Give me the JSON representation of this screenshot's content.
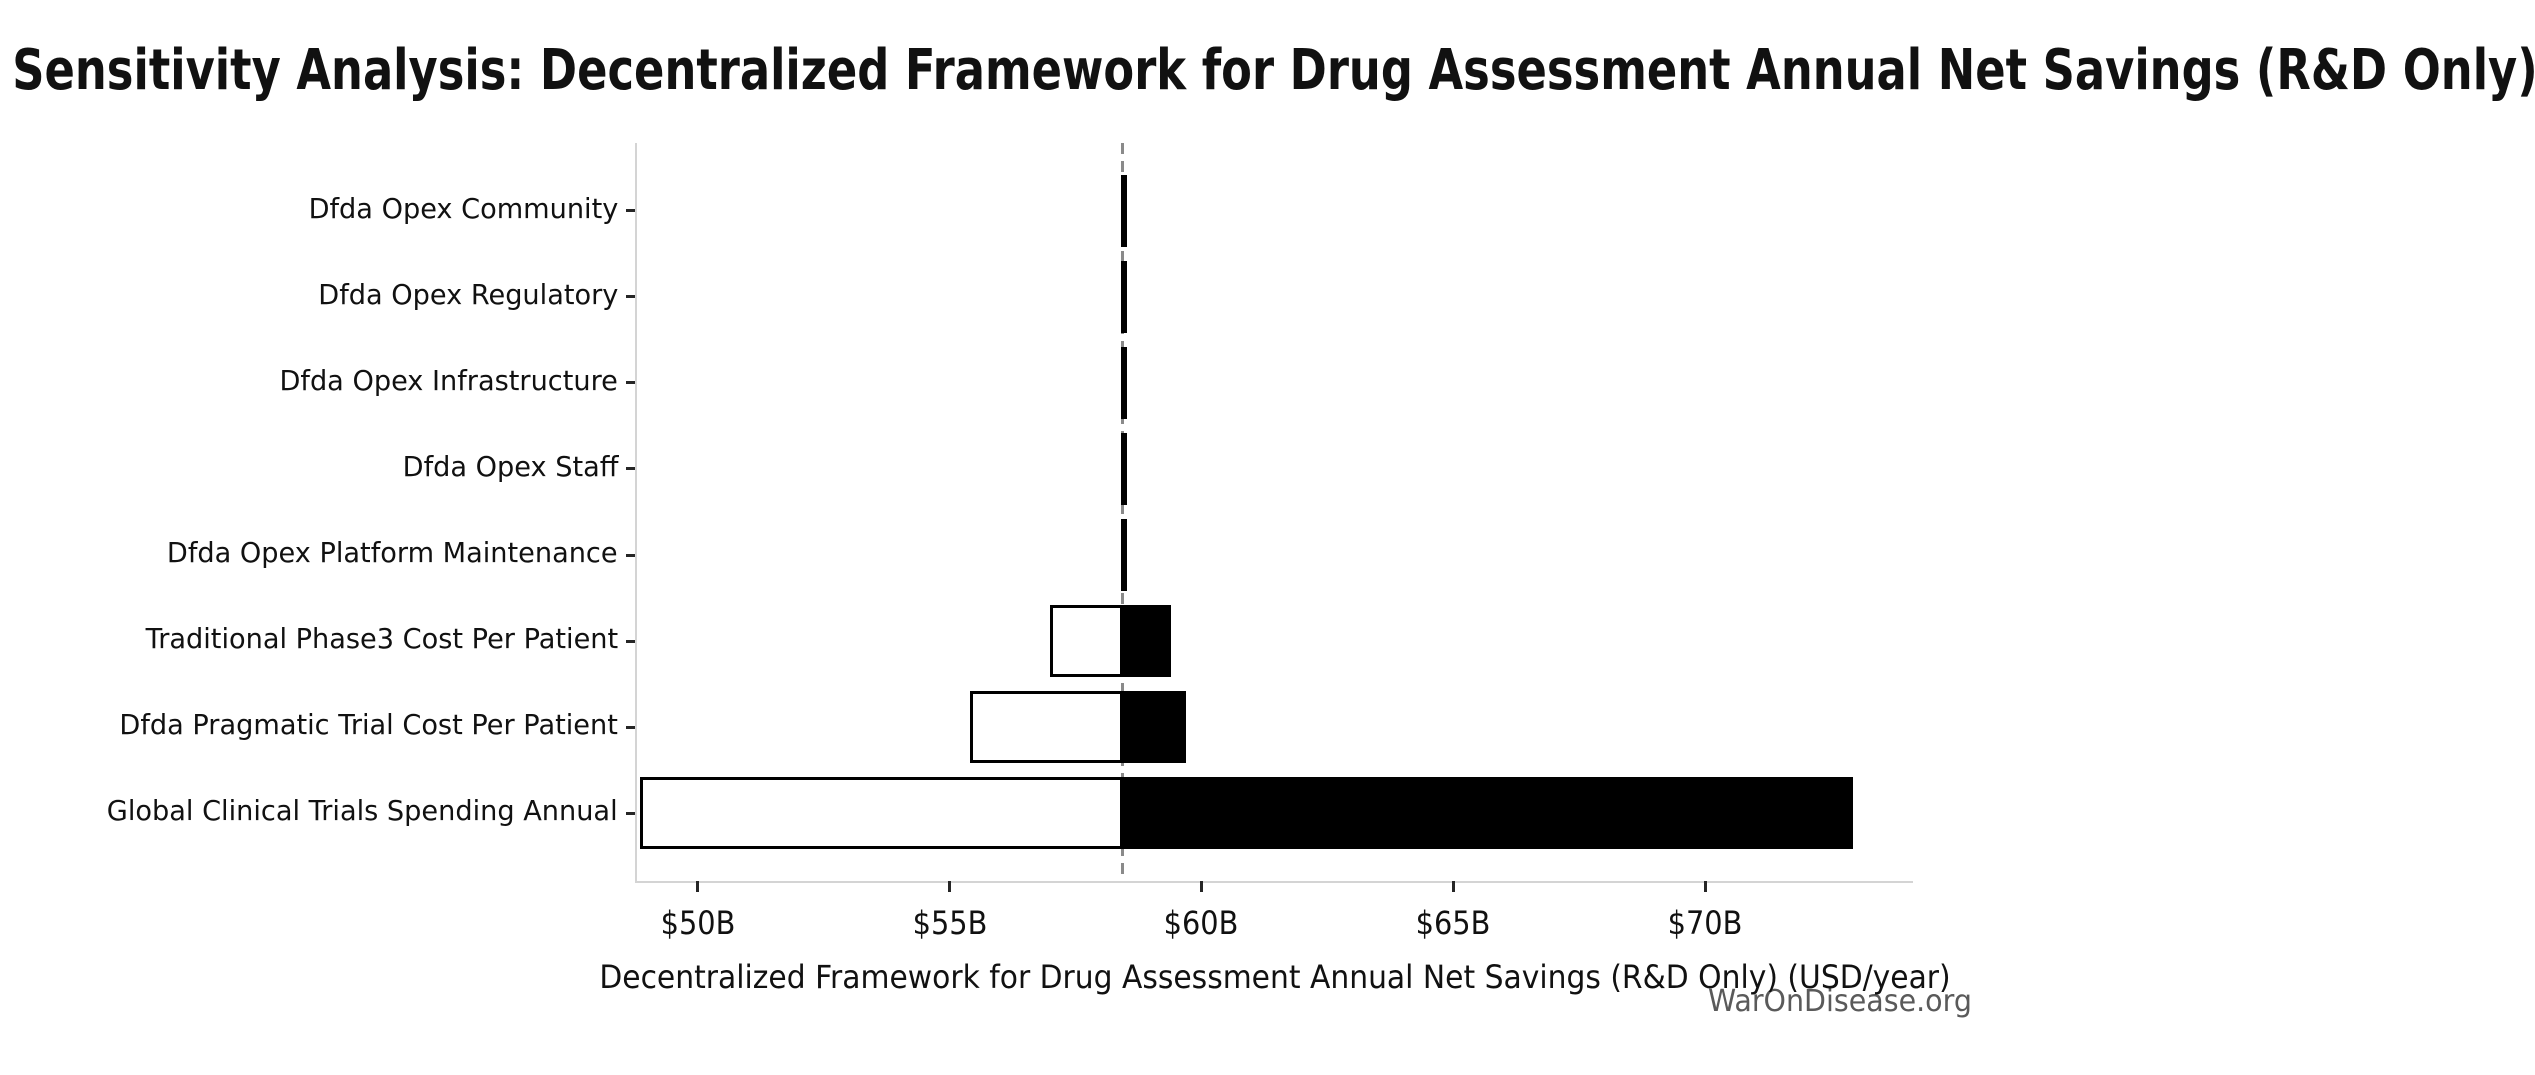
{
  "watermark": "WarOnDisease.org",
  "chart_data": {
    "type": "bar",
    "subtype": "tornado-sensitivity",
    "orientation": "horizontal",
    "title": "Sensitivity Analysis: Decentralized Framework for Drug Assessment Annual Net Savings (R&D Only)",
    "xlabel": "Decentralized Framework for Drug Assessment Annual Net Savings (R&D Only) (USD/year)",
    "ylabel": "",
    "unit": "USD billions per year",
    "categories": [
      "Dfda Opex Community",
      "Dfda Opex Regulatory",
      "Dfda Opex Infrastructure",
      "Dfda Opex Staff",
      "Dfda Opex Platform Maintenance",
      "Traditional Phase3 Cost Per Patient",
      "Dfda Pragmatic Trial Cost Per Patient",
      "Global Clinical Trials Spending Annual"
    ],
    "baseline": 58.44,
    "series": [
      {
        "name": "low",
        "values": [
          58.4,
          58.4,
          58.4,
          58.4,
          58.4,
          57.0,
          55.4,
          48.85
        ]
      },
      {
        "name": "high",
        "values": [
          58.48,
          58.48,
          58.48,
          58.48,
          58.48,
          59.4,
          59.7,
          72.93
        ]
      }
    ],
    "x_ticks": {
      "values": [
        50,
        55,
        60,
        65,
        70
      ],
      "labels": [
        "$50B",
        "$55B",
        "$60B",
        "$65B",
        "$70B"
      ]
    },
    "xlim": [
      48.79,
      74.13
    ],
    "grid": false,
    "legend": false,
    "colors": {
      "low_bar_fill": "#ffffff",
      "high_bar_fill": "#000000",
      "bar_edge": "#000000",
      "baseline_line": "#8a8a8a",
      "spine": "#d4d4d4",
      "tick": "#262626",
      "text": "#111111",
      "watermark": "#5a5a5a"
    }
  }
}
